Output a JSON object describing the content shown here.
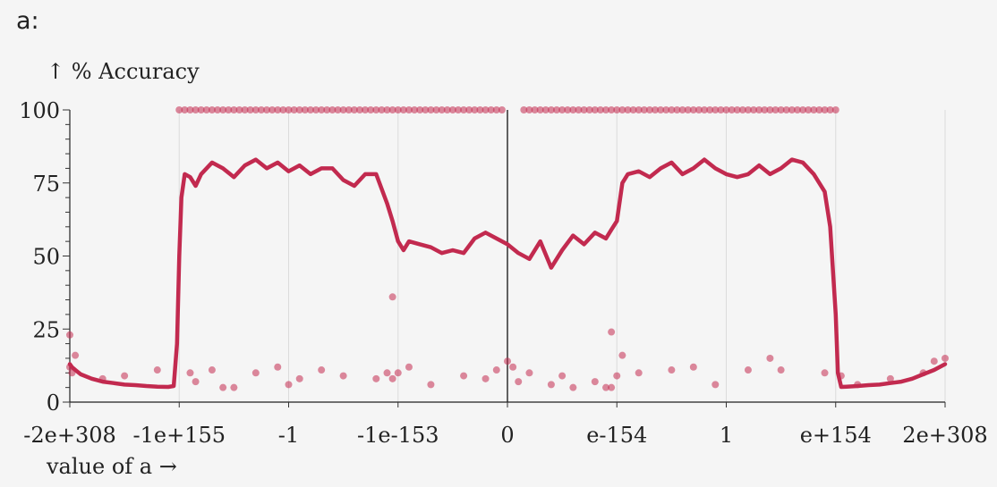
{
  "page_label": "a:",
  "chart_data": {
    "type": "line",
    "title": "",
    "ylabel": "↑ % Accuracy",
    "xlabel": "value of a →",
    "ylim": [
      0,
      100
    ],
    "y_ticks": [
      0,
      25,
      50,
      75,
      100
    ],
    "x_tick_labels": [
      "-2e+308",
      "-1e+155",
      "-1",
      "-1e-153",
      "0",
      "e-154",
      "1",
      "e+154",
      "2e+308"
    ],
    "grid": "vertical",
    "color": "#c22a4f",
    "series": [
      {
        "type": "line",
        "x": [
          0,
          0.02,
          0.05,
          0.1,
          0.2,
          0.3,
          0.4,
          0.5,
          0.6,
          0.7,
          0.8,
          0.9,
          0.95,
          0.98,
          1.0,
          1.02,
          1.05,
          1.1,
          1.15,
          1.2,
          1.3,
          1.4,
          1.5,
          1.6,
          1.7,
          1.8,
          1.9,
          2.0,
          2.1,
          2.2,
          2.3,
          2.4,
          2.5,
          2.6,
          2.7,
          2.8,
          2.9,
          2.95,
          3.0,
          3.05,
          3.1,
          3.2,
          3.3,
          3.4,
          3.5,
          3.6,
          3.7,
          3.8,
          3.9,
          4.0,
          4.1,
          4.2,
          4.3,
          4.4,
          4.5,
          4.6,
          4.7,
          4.8,
          4.9,
          4.95,
          5.0,
          5.05,
          5.1,
          5.2,
          5.3,
          5.4,
          5.5,
          5.6,
          5.7,
          5.8,
          5.9,
          6.0,
          6.1,
          6.2,
          6.3,
          6.4,
          6.5,
          6.6,
          6.7,
          6.8,
          6.9,
          6.95,
          7.0,
          7.02,
          7.05,
          7.1,
          7.2,
          7.3,
          7.4,
          7.5,
          7.6,
          7.7,
          7.8,
          7.9,
          8.0
        ],
        "y": [
          13,
          12,
          11,
          9.5,
          8,
          7,
          6.5,
          6,
          5.8,
          5.5,
          5.3,
          5.2,
          5.5,
          20,
          50,
          70,
          78,
          77,
          74,
          78,
          82,
          80,
          77,
          81,
          83,
          80,
          82,
          79,
          81,
          78,
          80,
          80,
          76,
          74,
          78,
          78,
          68,
          62,
          55,
          52,
          55,
          54,
          53,
          51,
          52,
          51,
          56,
          58,
          56,
          54,
          51,
          49,
          55,
          46,
          52,
          57,
          54,
          58,
          56,
          59,
          62,
          75,
          78,
          79,
          77,
          80,
          82,
          78,
          80,
          83,
          80,
          78,
          77,
          78,
          81,
          78,
          80,
          83,
          82,
          78,
          72,
          60,
          30,
          10,
          5.2,
          5.3,
          5.5,
          5.8,
          6,
          6.5,
          7,
          8,
          9.5,
          11,
          13
        ]
      },
      {
        "type": "scatter",
        "name": "",
        "x": [
          0,
          0.05,
          0.3,
          0.5,
          0.8,
          1.1,
          1.15,
          1.3,
          1.4,
          1.5,
          1.7,
          1.9,
          2.0,
          2.1,
          2.3,
          2.5,
          2.8,
          2.9,
          2.95,
          3.0,
          3.1,
          3.3,
          3.6,
          3.8,
          3.9,
          4.0,
          4.05,
          4.1,
          4.2,
          4.4,
          4.5,
          4.6,
          4.9,
          4.95,
          5.0,
          5.05,
          5.2,
          5.5,
          5.7,
          5.9,
          6.2,
          6.4,
          6.5,
          6.9,
          7.05,
          7.2,
          7.5,
          7.8,
          7.9,
          8.0,
          0,
          0.02,
          2.95,
          4.8,
          4.95
        ],
        "y": [
          23,
          16,
          8,
          9,
          11,
          10,
          7,
          11,
          5,
          5,
          10,
          12,
          6,
          8,
          11,
          9,
          8,
          10,
          36,
          10,
          12,
          6,
          9,
          8,
          11,
          14,
          12,
          7,
          10,
          6,
          9,
          5,
          5,
          24,
          9,
          16,
          10,
          11,
          12,
          6,
          11,
          15,
          11,
          10,
          9,
          6,
          8,
          10,
          14,
          15,
          12,
          10,
          8,
          7,
          5
        ]
      },
      {
        "type": "scatter",
        "name": "",
        "y_value": 100,
        "x": [
          1.0,
          1.05,
          1.1,
          1.15,
          1.2,
          1.25,
          1.3,
          1.35,
          1.4,
          1.45,
          1.5,
          1.55,
          1.6,
          1.65,
          1.7,
          1.75,
          1.8,
          1.85,
          1.9,
          1.95,
          2.0,
          2.05,
          2.1,
          2.15,
          2.2,
          2.25,
          2.3,
          2.35,
          2.4,
          2.45,
          2.5,
          2.55,
          2.6,
          2.65,
          2.7,
          2.75,
          2.8,
          2.85,
          2.9,
          2.95,
          3.0,
          3.05,
          3.1,
          3.15,
          3.2,
          3.25,
          3.3,
          3.35,
          3.4,
          3.45,
          3.5,
          3.55,
          3.6,
          3.65,
          3.7,
          3.75,
          3.8,
          3.85,
          3.9,
          3.95,
          4.15,
          4.2,
          4.25,
          4.3,
          4.35,
          4.4,
          4.45,
          4.5,
          4.55,
          4.6,
          4.65,
          4.7,
          4.75,
          4.8,
          4.85,
          4.9,
          4.95,
          5.0,
          5.05,
          5.1,
          5.15,
          5.2,
          5.25,
          5.3,
          5.35,
          5.4,
          5.45,
          5.5,
          5.55,
          5.6,
          5.65,
          5.7,
          5.75,
          5.8,
          5.85,
          5.9,
          5.95,
          6.0,
          6.05,
          6.1,
          6.15,
          6.2,
          6.25,
          6.3,
          6.35,
          6.4,
          6.45,
          6.5,
          6.55,
          6.6,
          6.65,
          6.7,
          6.75,
          6.8,
          6.85,
          6.9,
          6.95,
          7.0
        ]
      }
    ]
  }
}
